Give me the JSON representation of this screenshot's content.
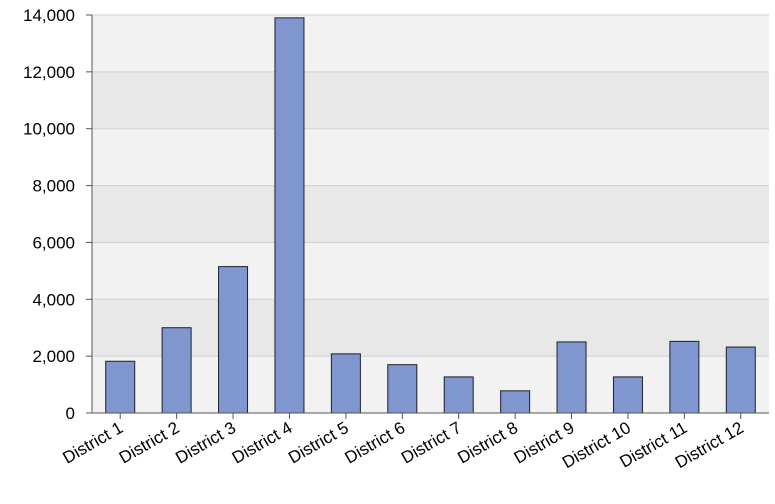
{
  "chart_data": {
    "type": "bar",
    "title": "",
    "xlabel": "",
    "ylabel": "",
    "categories": [
      "District 1",
      "District 2",
      "District 3",
      "District 4",
      "District 5",
      "District 6",
      "District 7",
      "District 8",
      "District 9",
      "District 10",
      "District 11",
      "District 12"
    ],
    "values": [
      1820,
      3000,
      5150,
      13900,
      2080,
      1700,
      1270,
      780,
      2500,
      1270,
      2520,
      2320
    ],
    "ylim": [
      0,
      14000
    ],
    "yticks": [
      0,
      2000,
      4000,
      6000,
      8000,
      10000,
      12000,
      14000
    ],
    "ytick_labels": [
      "0",
      "2,000",
      "4,000",
      "6,000",
      "8,000",
      "10,000",
      "12,000",
      "14,000"
    ],
    "grid": true,
    "legend": "none",
    "colors": {
      "bar_fill": "#7f96cf",
      "bar_stroke": "#1f1f2e",
      "band_dark": "#e8e8e8",
      "band_light": "#f2f2f2",
      "gridline": "#d0d0d0",
      "axis": "#555555"
    }
  }
}
